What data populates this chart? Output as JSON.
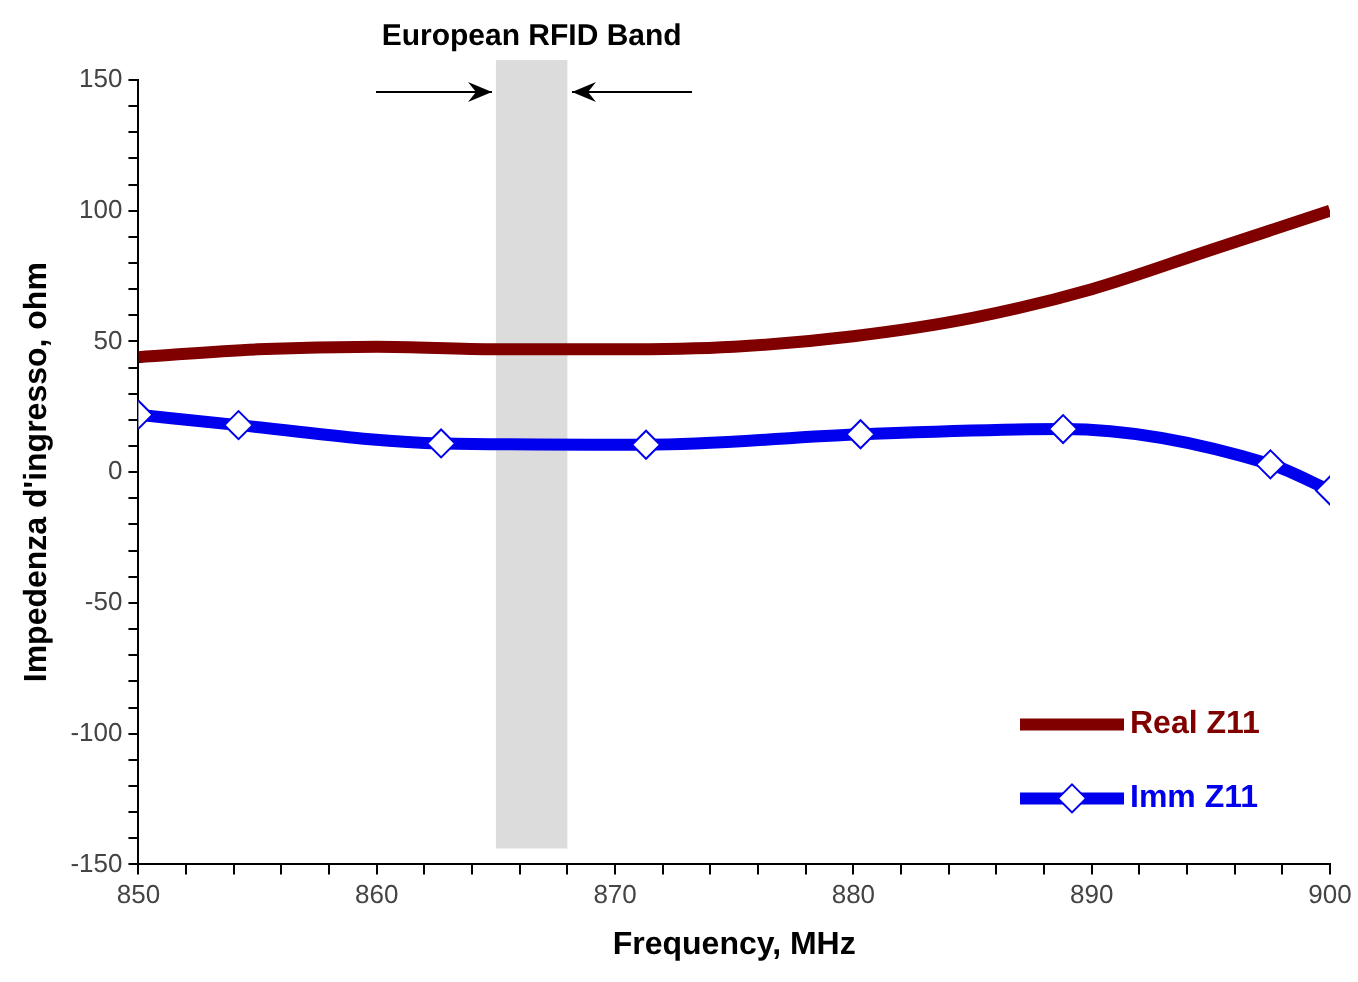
{
  "chart_data": {
    "type": "line",
    "xlabel": "Frequency, MHz",
    "ylabel": "Impedenza d'ingresso, ohm",
    "xlim": [
      850,
      900
    ],
    "ylim": [
      -150,
      150
    ],
    "xticks": [
      850,
      {
        "value": 852,
        "label": null
      },
      {
        "value": 854,
        "label": null
      },
      {
        "value": 856,
        "label": null
      },
      {
        "value": 858,
        "label": null
      },
      860,
      {
        "value": 862,
        "label": null
      },
      {
        "value": 864,
        "label": null
      },
      {
        "value": 866,
        "label": null
      },
      {
        "value": 868,
        "label": null
      },
      870,
      {
        "value": 872,
        "label": null
      },
      {
        "value": 874,
        "label": null
      },
      {
        "value": 876,
        "label": null
      },
      {
        "value": 878,
        "label": null
      },
      880,
      {
        "value": 882,
        "label": null
      },
      {
        "value": 884,
        "label": null
      },
      {
        "value": 886,
        "label": null
      },
      {
        "value": 888,
        "label": null
      },
      890,
      {
        "value": 892,
        "label": null
      },
      {
        "value": 894,
        "label": null
      },
      {
        "value": 896,
        "label": null
      },
      {
        "value": 898,
        "label": null
      },
      900
    ],
    "yticks": [
      -150,
      {
        "value": -140,
        "label": null
      },
      {
        "value": -130,
        "label": null
      },
      {
        "value": -120,
        "label": null
      },
      {
        "value": -110,
        "label": null
      },
      -100,
      {
        "value": -90,
        "label": null
      },
      {
        "value": -80,
        "label": null
      },
      {
        "value": -70,
        "label": null
      },
      {
        "value": -60,
        "label": null
      },
      -50,
      {
        "value": -40,
        "label": null
      },
      {
        "value": -30,
        "label": null
      },
      {
        "value": -20,
        "label": null
      },
      {
        "value": -10,
        "label": null
      },
      0,
      {
        "value": 10,
        "label": null
      },
      {
        "value": 20,
        "label": null
      },
      {
        "value": 30,
        "label": null
      },
      {
        "value": 40,
        "label": null
      },
      50,
      {
        "value": 60,
        "label": null
      },
      {
        "value": 70,
        "label": null
      },
      {
        "value": 80,
        "label": null
      },
      {
        "value": 90,
        "label": null
      },
      100,
      {
        "value": 110,
        "label": null
      },
      {
        "value": 120,
        "label": null
      },
      {
        "value": 130,
        "label": null
      },
      {
        "value": 140,
        "label": null
      },
      150
    ],
    "grid": false,
    "legend": "bottom right",
    "line_style": "solid",
    "bands": [
      {
        "axis": "x",
        "from": 865,
        "to": 868,
        "label": "European RFID Band",
        "color": "#dcdcdc"
      }
    ],
    "series": [
      {
        "name": "Real Z11",
        "color": "#800000",
        "marker": "none",
        "x": [
          850,
          855,
          860,
          865,
          870,
          875,
          880,
          885,
          890,
          895,
          900
        ],
        "values": [
          44,
          47,
          48,
          47,
          47,
          48,
          52,
          59,
          70,
          85,
          100
        ]
      },
      {
        "name": "Imm Z11",
        "color": "#0000ee",
        "marker": "diamond",
        "x": [
          850,
          854.2,
          862.7,
          871.3,
          880.3,
          888.8,
          897.5,
          900
        ],
        "values": [
          22,
          18,
          11,
          10.5,
          14.5,
          16.5,
          3,
          -7
        ]
      }
    ]
  }
}
